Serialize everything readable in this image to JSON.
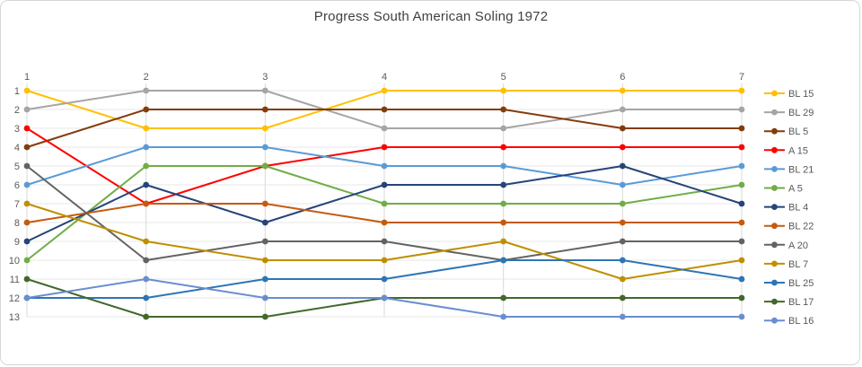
{
  "chart_data": {
    "type": "line",
    "title": "Progress South American Soling 1972",
    "xlabel": "",
    "ylabel": "",
    "x": [
      1,
      2,
      3,
      4,
      5,
      6,
      7
    ],
    "x_tick_labels": [
      "1",
      "2",
      "3",
      "4",
      "5",
      "6",
      "7"
    ],
    "y_tick_labels": [
      "1",
      "2",
      "3",
      "4",
      "5",
      "6",
      "7",
      "8",
      "9",
      "10",
      "11",
      "12",
      "13"
    ],
    "ylim": [
      1,
      13
    ],
    "y_axis_inverted": true,
    "grid": true,
    "legend_position": "right",
    "series": [
      {
        "name": "BL 15",
        "color": "#FFC000",
        "values": [
          1,
          3,
          3,
          1,
          1,
          1,
          1
        ]
      },
      {
        "name": "BL 29",
        "color": "#A5A5A5",
        "values": [
          2,
          1,
          1,
          3,
          3,
          2,
          2
        ]
      },
      {
        "name": "BL 5",
        "color": "#843C0C",
        "values": [
          4,
          2,
          2,
          2,
          2,
          3,
          3
        ]
      },
      {
        "name": "A 15",
        "color": "#FF0000",
        "values": [
          3,
          7,
          5,
          4,
          4,
          4,
          4
        ]
      },
      {
        "name": "BL 21",
        "color": "#5B9BD5",
        "values": [
          6,
          4,
          4,
          5,
          5,
          6,
          5
        ]
      },
      {
        "name": "A 5",
        "color": "#70AD47",
        "values": [
          10,
          5,
          5,
          7,
          7,
          7,
          6
        ]
      },
      {
        "name": "BL 4",
        "color": "#264478",
        "values": [
          9,
          6,
          8,
          6,
          6,
          5,
          7
        ]
      },
      {
        "name": "BL 22",
        "color": "#C55A11",
        "values": [
          8,
          7,
          7,
          8,
          8,
          8,
          8
        ]
      },
      {
        "name": "A 20",
        "color": "#636363",
        "values": [
          5,
          10,
          9,
          9,
          10,
          9,
          9
        ]
      },
      {
        "name": "BL 7",
        "color": "#BF8F00",
        "values": [
          7,
          9,
          10,
          10,
          9,
          11,
          10
        ]
      },
      {
        "name": "BL 25",
        "color": "#2E75B6",
        "values": [
          12,
          12,
          11,
          11,
          10,
          10,
          11
        ]
      },
      {
        "name": "BL 17",
        "color": "#43682B",
        "values": [
          11,
          13,
          13,
          12,
          12,
          12,
          12
        ]
      },
      {
        "name": "BL 16",
        "color": "#698ED0",
        "values": [
          12,
          11,
          12,
          12,
          13,
          13,
          13
        ]
      }
    ]
  },
  "style": {
    "background": "#FFFFFF",
    "border_color": "#D6D6D6",
    "grid_color": "#D9D9D9",
    "row_grid_color": "#E7E7E7",
    "tick_text_color": "#595959",
    "title_color": "#404040"
  }
}
